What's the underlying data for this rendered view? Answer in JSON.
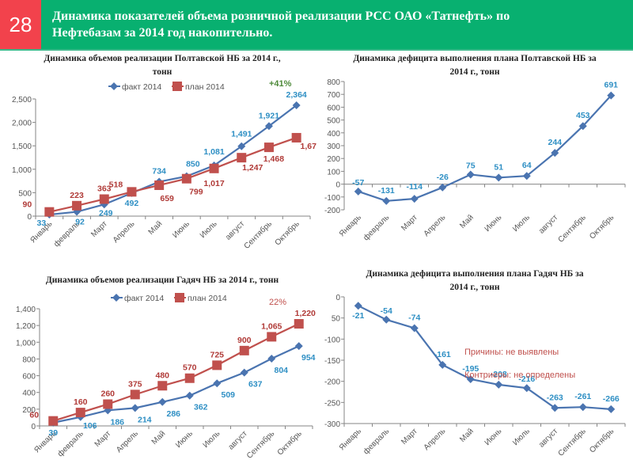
{
  "header": {
    "slide_number": "28",
    "title_line1": "Динамика показателей объема розничной реализации РСС  ОАО «Татнефть» по",
    "title_line2": "Нефтебазам за 2014 год накопительно."
  },
  "colors": {
    "header_bg": "#08b070",
    "slide_number_bg": "#f2424c",
    "fact_line": "#4a74b0",
    "fact_label": "#2e8fc4",
    "plan_line": "#c0504d",
    "plan_label": "#b03a37",
    "deficit_label": "#2e8fc4",
    "annotation_green": "#4e8a3a",
    "annotation_red": "#c0504d"
  },
  "chart_data": [
    {
      "id": "poltava_volume",
      "type": "line",
      "title_line1": "Динамика объемов реализации Полтавской НБ за  2014 г.,",
      "title_line2": "тонн",
      "categories": [
        "Январь",
        "февраль",
        "Март",
        "Апрель",
        "Май",
        "Июнь",
        "Июль",
        "август",
        "Сентябрь",
        "Октябрь"
      ],
      "series": [
        {
          "name": "факт 2014",
          "marker": "diamond",
          "values": [
            33,
            92,
            249,
            492,
            734,
            850,
            1081,
            1491,
            1921,
            2364
          ],
          "labels": [
            "33",
            "92",
            "249",
            "492",
            "734",
            "850",
            "1,081",
            "1,491",
            "1,921",
            "2,364"
          ]
        },
        {
          "name": "план 2014",
          "marker": "square",
          "values": [
            90,
            223,
            363,
            518,
            659,
            799,
            1017,
            1247,
            1468,
            1673
          ],
          "labels": [
            "90",
            "223",
            "363",
            "518",
            "659",
            "799",
            "1,017",
            "1,247",
            "1,468",
            "1,673"
          ]
        }
      ],
      "yticks": [
        "0",
        "500",
        "1,000",
        "1,500",
        "2,000",
        "2,500"
      ],
      "ylim": [
        0,
        2500
      ],
      "legend": "top",
      "annotation": "+41%",
      "grid": false
    },
    {
      "id": "poltava_deficit",
      "type": "line",
      "title_line1": "Динамика дефицита выполнения плана Полтавской НБ за",
      "title_line2": "2014 г., тонн",
      "categories": [
        "Январь",
        "февраль",
        "Март",
        "Апрель",
        "Май",
        "Июнь",
        "Июль",
        "август",
        "Сентябрь",
        "Октябрь"
      ],
      "series": [
        {
          "name": "дефицит",
          "marker": "diamond",
          "values": [
            -57,
            -131,
            -114,
            -26,
            75,
            51,
            64,
            244,
            453,
            691
          ],
          "labels": [
            "-57",
            "-131",
            "-114",
            "-26",
            "75",
            "51",
            "64",
            "244",
            "453",
            "691"
          ]
        }
      ],
      "yticks": [
        "-200",
        "-100",
        "0",
        "100",
        "200",
        "300",
        "400",
        "500",
        "600",
        "700",
        "800"
      ],
      "ylim": [
        -200,
        800
      ],
      "grid": false
    },
    {
      "id": "gadyach_volume",
      "type": "line",
      "title_line1": "Динамика объемов реализации Гадяч НБ за  2014 г., тонн",
      "title_line2": "",
      "categories": [
        "Январь",
        "февраль",
        "Март",
        "Апрель",
        "Май",
        "Июнь",
        "Июль",
        "август",
        "Сентябрь",
        "Октябрь"
      ],
      "series": [
        {
          "name": "факт 2014",
          "marker": "diamond",
          "values": [
            39,
            106,
            186,
            214,
            286,
            362,
            509,
            637,
            804,
            954
          ],
          "labels": [
            "39",
            "106",
            "186",
            "214",
            "286",
            "362",
            "509",
            "637",
            "804",
            "954"
          ]
        },
        {
          "name": "план 2014",
          "marker": "square",
          "values": [
            60,
            160,
            260,
            375,
            480,
            570,
            725,
            900,
            1065,
            1220
          ],
          "labels": [
            "60",
            "160",
            "260",
            "375",
            "480",
            "570",
            "725",
            "900",
            "1,065",
            "1,220"
          ]
        }
      ],
      "yticks": [
        "0",
        "200",
        "400",
        "600",
        "800",
        "1,000",
        "1,200",
        "1,400"
      ],
      "ylim": [
        0,
        1400
      ],
      "legend": "top",
      "annotation": "22%",
      "grid": false
    },
    {
      "id": "gadyach_deficit",
      "type": "line",
      "title_line1": "Динамика дефицита выполнения плана Гадяч НБ за",
      "title_line2": "2014 г., тонн",
      "categories": [
        "Январь",
        "февраль",
        "Март",
        "Апрель",
        "Май",
        "Июнь",
        "Июль",
        "август",
        "Сентябрь",
        "Октябрь"
      ],
      "series": [
        {
          "name": "дефицит",
          "marker": "diamond",
          "values": [
            -21,
            -54,
            -74,
            -161,
            -195,
            -208,
            -216,
            -263,
            -261,
            -266
          ],
          "labels": [
            "-21",
            "-54",
            "-74",
            "-161",
            "-195",
            "-208",
            "-216",
            "-263",
            "-261",
            "-266"
          ]
        }
      ],
      "yticks": [
        "-300",
        "-250",
        "-200",
        "-150",
        "-100",
        "50",
        "0"
      ],
      "ylim": [
        -300,
        0
      ],
      "notes": [
        "Причины: не выявлены",
        "Контриеры: не определены"
      ],
      "grid": false
    }
  ]
}
